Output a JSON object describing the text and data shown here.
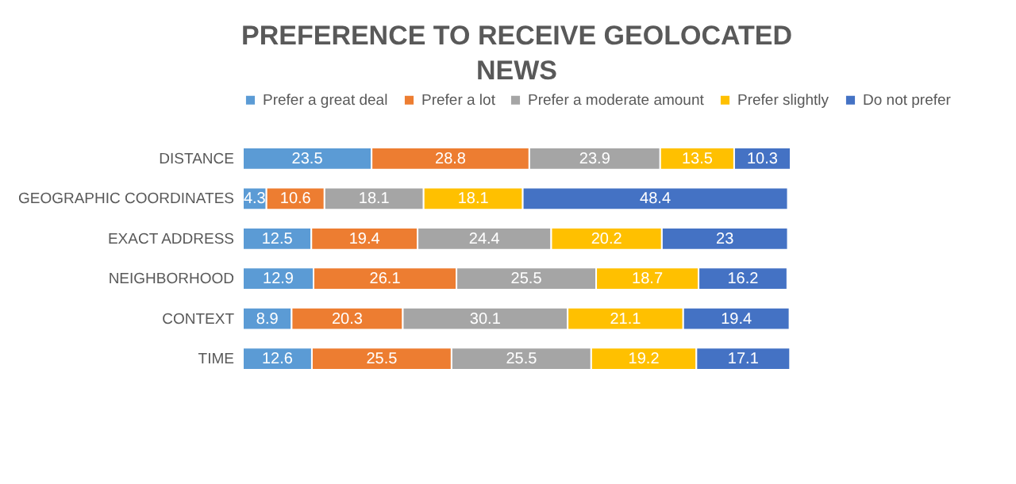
{
  "chart_data": {
    "type": "bar",
    "orientation": "horizontal",
    "stacked": true,
    "data_labels": true,
    "legend": "top",
    "grid": false,
    "title": "PREFERENCE TO RECEIVE GEOLOCATED NEWS",
    "categories": [
      "DISTANCE",
      "GEOGRAPHIC COORDINATES",
      "EXACT ADDRESS",
      "NEIGHBORHOOD",
      "CONTEXT",
      "TIME"
    ],
    "series": [
      {
        "name": "Prefer a great deal",
        "color": "#5b9bd5",
        "values": [
          23.5,
          4.3,
          12.5,
          12.9,
          8.9,
          12.6
        ]
      },
      {
        "name": "Prefer a lot",
        "color": "#ed7d31",
        "values": [
          28.8,
          10.6,
          19.4,
          26.1,
          20.3,
          25.5
        ]
      },
      {
        "name": "Prefer a moderate amount",
        "color": "#a5a5a5",
        "values": [
          23.9,
          18.1,
          24.4,
          25.5,
          30.1,
          25.5
        ]
      },
      {
        "name": "Prefer slightly",
        "color": "#ffc000",
        "values": [
          13.5,
          18.1,
          20.2,
          18.7,
          21.1,
          19.2
        ]
      },
      {
        "name": "Do not prefer",
        "color": "#4472c4",
        "values": [
          10.3,
          48.4,
          23,
          16.2,
          19.4,
          17.1
        ]
      }
    ]
  }
}
